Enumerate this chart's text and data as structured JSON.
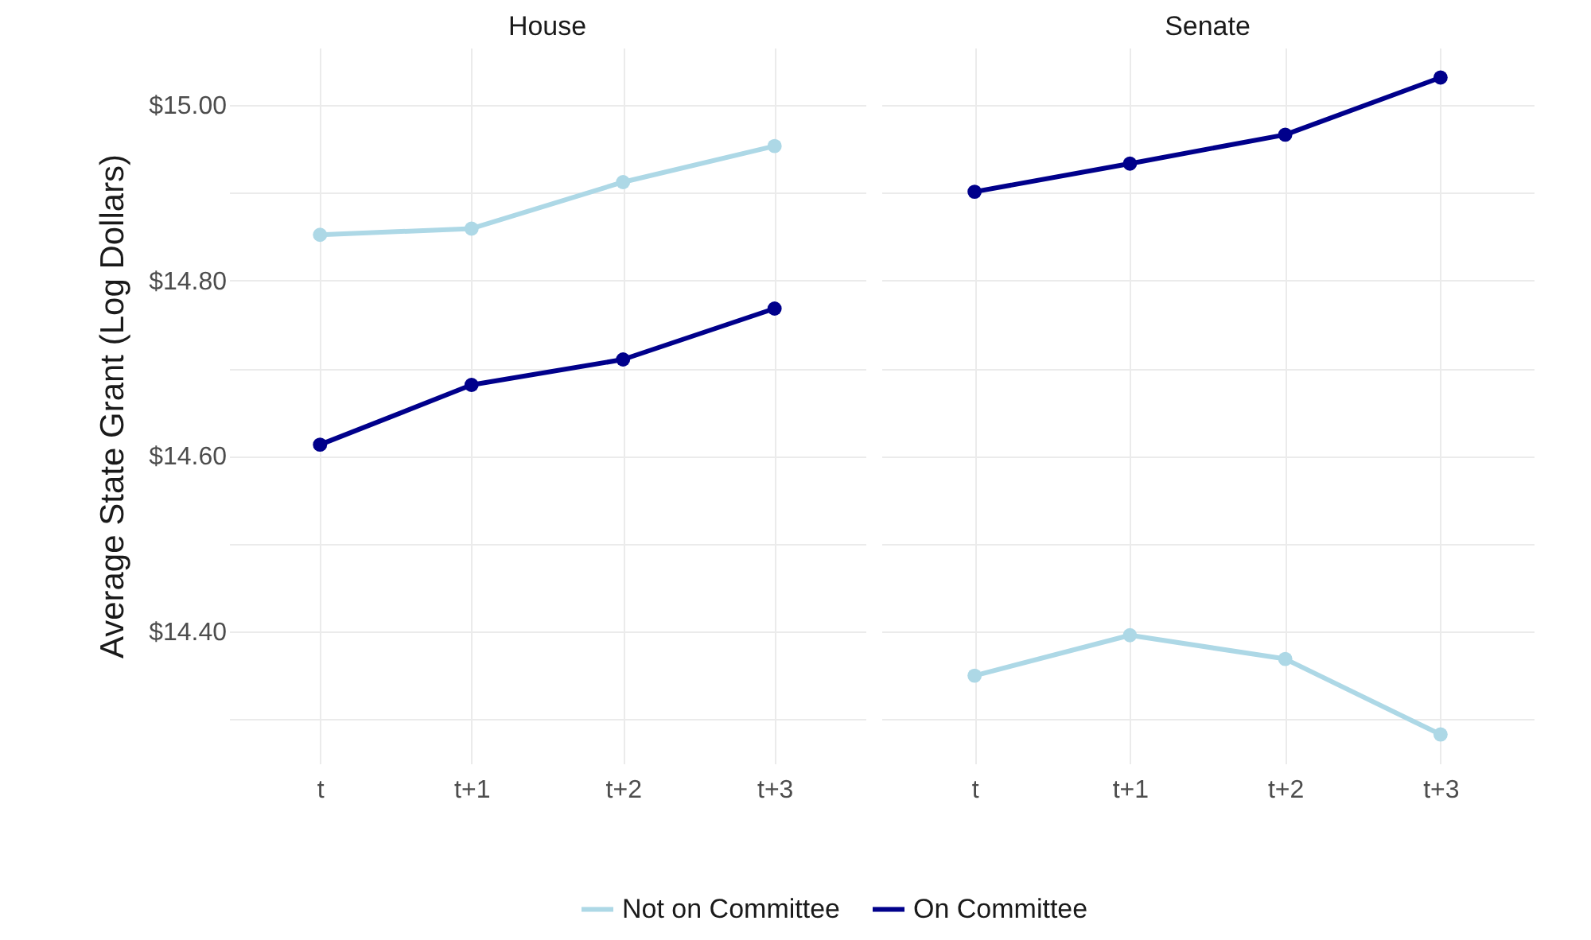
{
  "chart_data": [
    {
      "type": "line",
      "title": "House",
      "ylabel": "Average State Grant (Log Dollars)",
      "categories": [
        "t",
        "t+1",
        "t+2",
        "t+3"
      ],
      "series": [
        {
          "name": "Not on Committee",
          "color": "#add8e6",
          "values": [
            14.852,
            14.859,
            14.912,
            14.953
          ]
        },
        {
          "name": "On Committee",
          "color": "#00008b",
          "values": [
            14.613,
            14.681,
            14.71,
            14.768
          ]
        }
      ],
      "ylim": [
        14.25,
        15.065
      ],
      "yticks": [
        {
          "value": 14.3,
          "label": null
        },
        {
          "value": 14.4,
          "label": "$14.40"
        },
        {
          "value": 14.5,
          "label": null
        },
        {
          "value": 14.6,
          "label": "$14.60"
        },
        {
          "value": 14.7,
          "label": null
        },
        {
          "value": 14.8,
          "label": "$14.80"
        },
        {
          "value": 14.9,
          "label": null
        },
        {
          "value": 15,
          "label": "$15.00"
        }
      ],
      "grid": true,
      "legend": "bottom",
      "marker": "circle",
      "line_style": "solid"
    },
    {
      "type": "line",
      "title": "Senate",
      "categories": [
        "t",
        "t+1",
        "t+2",
        "t+3"
      ],
      "series": [
        {
          "name": "Not on Committee",
          "color": "#add8e6",
          "values": [
            14.35,
            14.396,
            14.369,
            14.283
          ]
        },
        {
          "name": "On Committee",
          "color": "#00008b",
          "values": [
            14.901,
            14.933,
            14.966,
            15.031
          ]
        }
      ],
      "ylim": [
        14.25,
        15.065
      ],
      "yticks": [
        14.3,
        14.4,
        14.5,
        14.6,
        14.7,
        14.8,
        14.9,
        15
      ],
      "grid": true,
      "legend": "bottom",
      "marker": "circle",
      "line_style": "solid",
      "tick_labels": "x"
    }
  ]
}
